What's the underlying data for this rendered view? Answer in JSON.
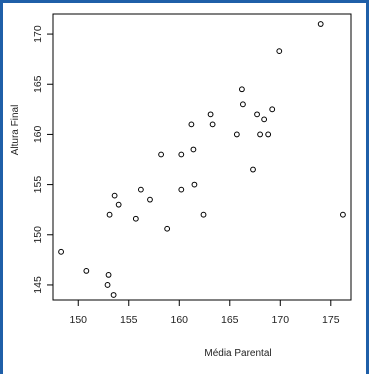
{
  "chart_data": {
    "type": "scatter",
    "title": "",
    "xlabel": "Média Parental",
    "ylabel": "Altura Final",
    "xlim": [
      147.5,
      177
    ],
    "ylim": [
      143.5,
      172
    ],
    "x_ticks": [
      150,
      155,
      160,
      165,
      170,
      175
    ],
    "y_ticks": [
      145,
      150,
      155,
      160,
      165,
      170
    ],
    "grid": false,
    "series": [
      {
        "marker": "open-circle",
        "color": "#000000",
        "x": [
          148.3,
          150.8,
          153.0,
          152.9,
          153.5,
          153.1,
          153.6,
          154.0,
          155.7,
          156.2,
          157.1,
          158.2,
          158.8,
          160.2,
          160.2,
          161.2,
          161.5,
          161.4,
          162.4,
          163.1,
          163.3,
          165.7,
          166.2,
          166.3,
          167.3,
          167.7,
          168.0,
          168.4,
          168.8,
          169.2,
          169.9,
          174.0,
          176.2
        ],
        "y": [
          148.3,
          146.4,
          146.0,
          145.0,
          144.0,
          152.0,
          153.9,
          153.0,
          151.6,
          154.5,
          153.5,
          158.0,
          150.6,
          158.0,
          154.5,
          161.0,
          155.0,
          158.5,
          152.0,
          162.0,
          161.0,
          160.0,
          164.5,
          163.0,
          156.5,
          162.0,
          160.0,
          161.5,
          160.0,
          162.5,
          168.3,
          171.0,
          152.0
        ]
      }
    ]
  }
}
